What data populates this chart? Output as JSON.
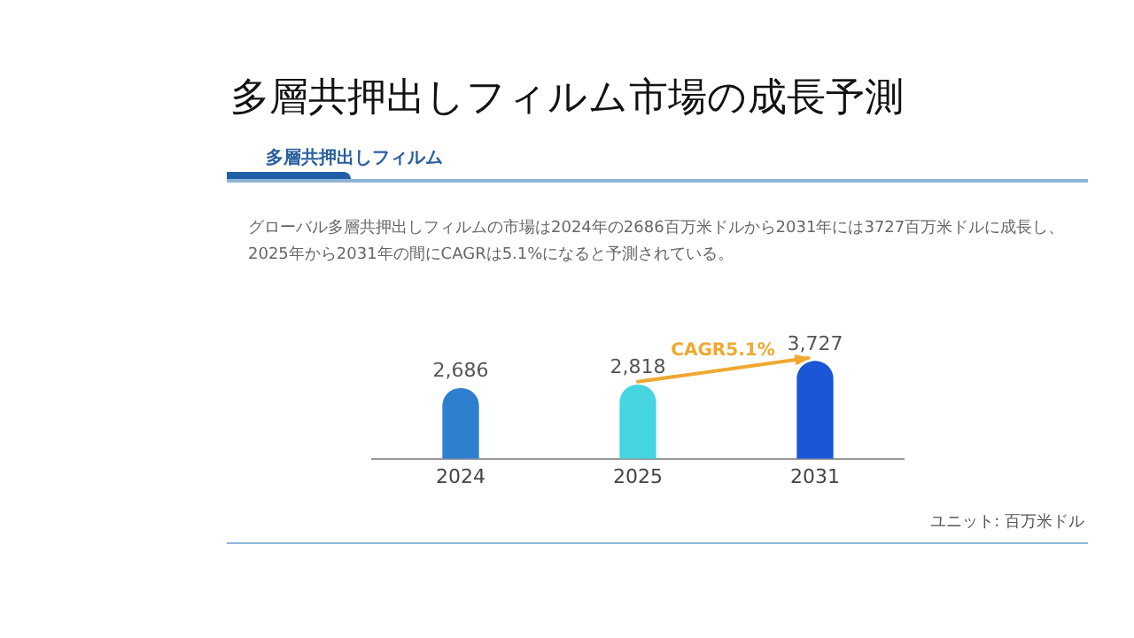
{
  "chart_data": {
    "type": "bar",
    "title": "多層共押出しフィルム市場の成長予測",
    "subtitle": "多層共押出しフィルム",
    "categories": [
      "2024",
      "2025",
      "2031"
    ],
    "values": [
      2686,
      2818,
      3727
    ],
    "colors": [
      "#2f7fcf",
      "#45d4e0",
      "#1a56d6"
    ],
    "value_labels": [
      "2,686",
      "2,818",
      "3,727"
    ],
    "tick_labels": "x",
    "annotations": [
      "グローバル多層共押出しフィルムの市場は2024年の2686百万米ドルから2031年には3727百万米ドルに成長し、2025年から2031年の間にCAGRは5.1%になると予測されている。",
      "CAGR5.1%",
      "ユニット: 百万米ドル"
    ],
    "grid": false,
    "legend": false
  }
}
